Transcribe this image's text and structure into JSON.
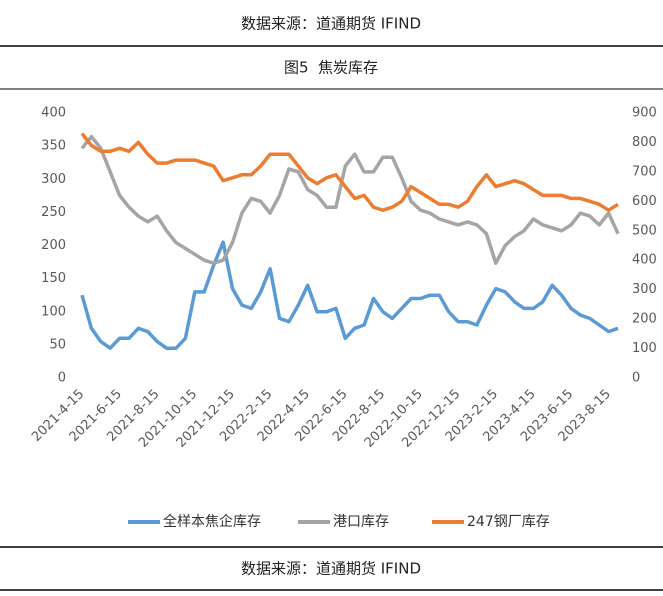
{
  "header": {
    "source": "数据来源：道通期货 IFIND"
  },
  "chart_data": {
    "type": "line",
    "title": "图5  焦炭库存",
    "categories": [
      "2021-4-15",
      null,
      null,
      null,
      "2021-6-15",
      null,
      null,
      null,
      "2021-8-15",
      null,
      null,
      null,
      "2021-10-15",
      null,
      null,
      null,
      "2021-12-15",
      null,
      null,
      null,
      "2022-2-15",
      null,
      null,
      null,
      "2022-4-15",
      null,
      null,
      null,
      "2022-6-15",
      null,
      null,
      null,
      "2022-8-15",
      null,
      null,
      null,
      "2022-10-15",
      null,
      null,
      null,
      "2022-12-15",
      null,
      null,
      null,
      "2023-2-15",
      null,
      null,
      null,
      "2023-4-15",
      null,
      null,
      null,
      "2023-6-15",
      null,
      null,
      null,
      "2023-8-15",
      null
    ],
    "series": [
      {
        "name": "全样本焦企库存",
        "color": "#5b9bd5",
        "axis": "y",
        "values": [
          125,
          75,
          55,
          45,
          60,
          60,
          75,
          70,
          55,
          45,
          45,
          60,
          130,
          130,
          170,
          205,
          135,
          110,
          105,
          130,
          165,
          90,
          85,
          110,
          140,
          100,
          100,
          105,
          60,
          75,
          80,
          120,
          100,
          90,
          105,
          120,
          120,
          125,
          125,
          100,
          85,
          85,
          80,
          110,
          135,
          130,
          115,
          105,
          105,
          115,
          140,
          125,
          105,
          95,
          90,
          80,
          70,
          75
        ]
      },
      {
        "name": "港口库存",
        "color": "#a5a5a5",
        "axis": "y2",
        "values": [
          780,
          820,
          780,
          700,
          620,
          580,
          550,
          530,
          550,
          500,
          460,
          440,
          420,
          400,
          390,
          400,
          460,
          560,
          610,
          600,
          560,
          620,
          710,
          700,
          640,
          620,
          580,
          580,
          720,
          760,
          700,
          700,
          750,
          750,
          680,
          600,
          570,
          560,
          540,
          530,
          520,
          530,
          520,
          490,
          390,
          450,
          480,
          500,
          540,
          520,
          510,
          500,
          520,
          560,
          550,
          520,
          560,
          490
        ]
      },
      {
        "name": "247钢厂库存",
        "color": "#ed7d31",
        "axis": "y2",
        "values": [
          830,
          790,
          770,
          770,
          780,
          770,
          800,
          760,
          730,
          730,
          740,
          740,
          740,
          730,
          720,
          670,
          680,
          690,
          690,
          720,
          760,
          760,
          760,
          720,
          680,
          660,
          680,
          690,
          650,
          610,
          620,
          580,
          570,
          580,
          600,
          650,
          630,
          610,
          590,
          590,
          580,
          600,
          650,
          690,
          650,
          660,
          670,
          660,
          640,
          620,
          620,
          620,
          610,
          610,
          600,
          590,
          570,
          590
        ]
      }
    ],
    "ylim": [
      0,
      400
    ],
    "yticks": [
      0,
      50,
      100,
      150,
      200,
      250,
      300,
      350,
      400
    ],
    "y2lim": [
      0,
      900
    ],
    "y2ticks": [
      0,
      100,
      200,
      300,
      400,
      500,
      600,
      700,
      800,
      900
    ]
  },
  "footer": {
    "source": "数据来源：道通期货 IFIND"
  }
}
